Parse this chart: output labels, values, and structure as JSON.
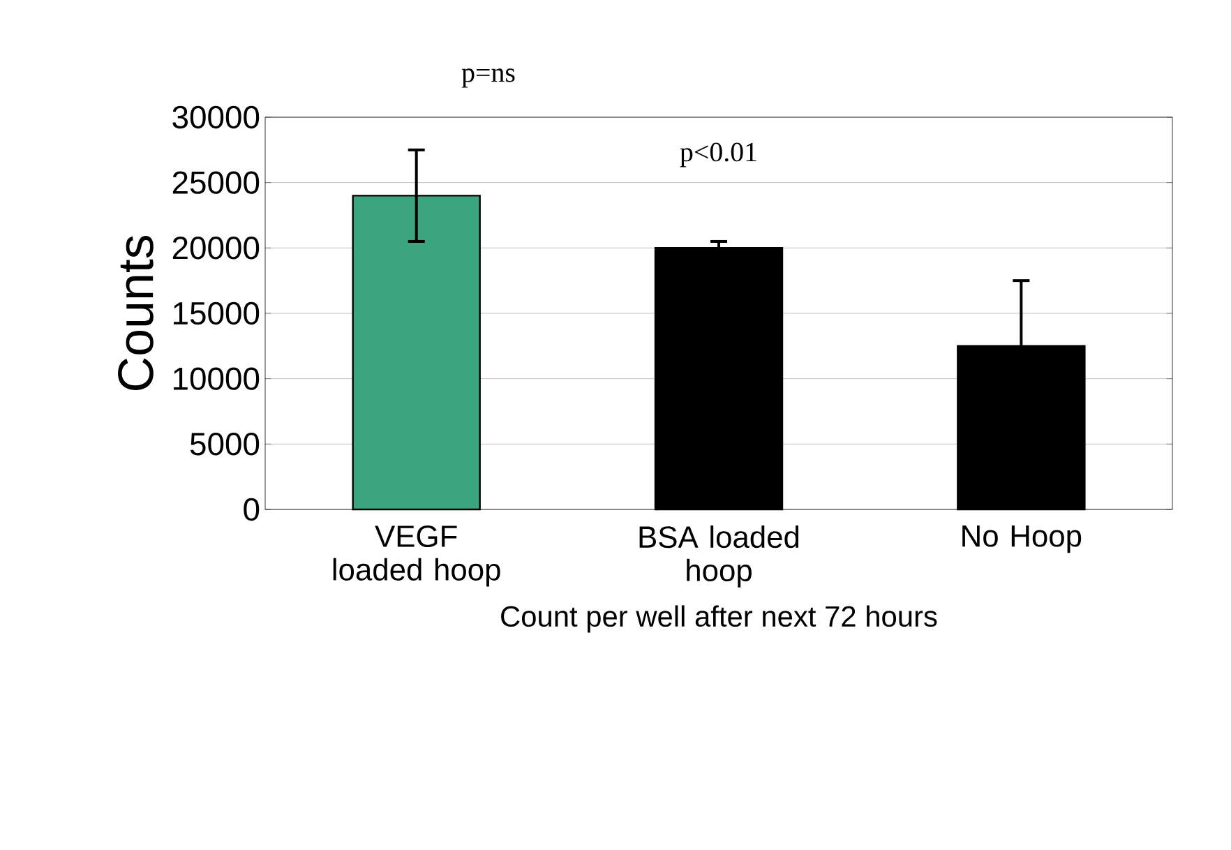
{
  "chart_data": {
    "type": "bar",
    "categories": [
      "VEGF loaded hoop",
      "BSA loaded hoop",
      "No Hoop"
    ],
    "values": [
      24000,
      20000,
      12500
    ],
    "errors": [
      3500,
      500,
      5000
    ],
    "colors": [
      "#3aa57e",
      "#000000",
      "#000000"
    ],
    "xlabel": "Count per well after next 72 hours",
    "ylabel": "Counts",
    "ylim": [
      0,
      30000
    ],
    "yticks": [
      0,
      5000,
      10000,
      15000,
      20000,
      25000,
      30000
    ],
    "grid": "y",
    "annotations": [
      "p=ns",
      "p<0.01"
    ]
  }
}
